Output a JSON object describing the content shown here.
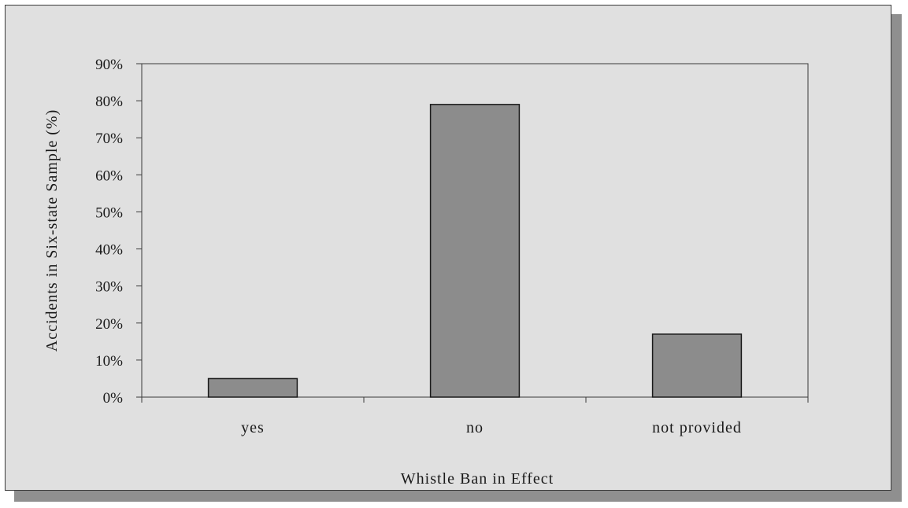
{
  "chart_data": {
    "type": "bar",
    "categories": [
      "yes",
      "no",
      "not provided"
    ],
    "values": [
      5,
      79,
      17
    ],
    "value_unit": "%",
    "title": "",
    "xlabel": "Whistle Ban in Effect",
    "ylabel": "Accidents in Six-state Sample (%)",
    "ylim": [
      0,
      90
    ],
    "yticks": [
      "0%",
      "10%",
      "20%",
      "30%",
      "40%",
      "50%",
      "60%",
      "70%",
      "80%",
      "90%"
    ],
    "ytick_values": [
      0,
      10,
      20,
      30,
      40,
      50,
      60,
      70,
      80,
      90
    ],
    "grid": false,
    "legend": "none",
    "colors": {
      "bar_fill": "#8c8c8c",
      "bar_stroke": "#1a1a1a",
      "background": "#e0e0e0",
      "shadow": "#8f8f8f"
    }
  }
}
